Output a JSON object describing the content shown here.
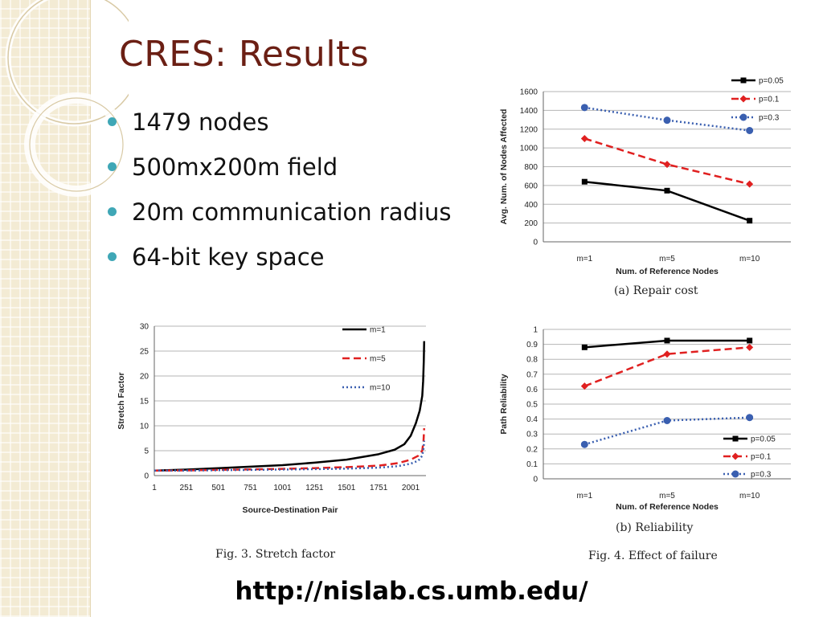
{
  "slide": {
    "title": "CRES: Results",
    "bullets": [
      "1479 nodes",
      "500mx200m field",
      "20m communication radius",
      "64-bit key space"
    ],
    "footer_url": "http://nislab.cs.umb.edu/",
    "colors": {
      "title": "#6b1f14",
      "bullet": "#3fa7b6",
      "sidebar": "#f3ebd4"
    }
  },
  "captions": {
    "repair": "(a)  Repair cost",
    "reliability": "(b)  Reliability",
    "fig3": "Fig. 3.    Stretch factor",
    "fig4": "Fig. 4.    Effect of failure"
  },
  "chart_data": [
    {
      "id": "repair",
      "type": "line",
      "categories": [
        "m=1",
        "m=5",
        "m=10"
      ],
      "xlabel": "Num. of Reference Nodes",
      "ylabel": "Avg. Num. of Nodes Affected",
      "ylim": [
        0,
        1600
      ],
      "yticks": [
        0,
        200,
        400,
        600,
        800,
        1000,
        1200,
        1400,
        1600
      ],
      "grid": true,
      "legend": "top-right",
      "series": [
        {
          "name": "p=0.05",
          "values": [
            640,
            545,
            225
          ],
          "color": "#000000",
          "style": "solid",
          "marker": "square"
        },
        {
          "name": "p=0.1",
          "values": [
            1100,
            825,
            615
          ],
          "color": "#e02020",
          "style": "dashed",
          "marker": "diamond"
        },
        {
          "name": "p=0.3",
          "values": [
            1430,
            1295,
            1185
          ],
          "color": "#3a5fb0",
          "style": "dotted",
          "marker": "circle"
        }
      ]
    },
    {
      "id": "stretch",
      "type": "line",
      "xlabel": "Source-Destination Pair",
      "ylabel": "Stretch Factor",
      "ylim": [
        0,
        30
      ],
      "xlim": [
        1,
        2100
      ],
      "xticks": [
        "1",
        "251",
        "501",
        "751",
        "1001",
        "1251",
        "1501",
        "1751",
        "2001"
      ],
      "yticks": [
        0,
        5,
        10,
        15,
        20,
        25,
        30
      ],
      "grid": true,
      "legend": "top-right",
      "series": [
        {
          "name": "m=1",
          "color": "#000000",
          "style": "solid",
          "x": [
            1,
            251,
            501,
            751,
            1001,
            1251,
            1501,
            1751,
            1876,
            1951,
            2001,
            2041,
            2071,
            2091,
            2098,
            2103,
            2106
          ],
          "values": [
            1.0,
            1.2,
            1.5,
            1.8,
            2.1,
            2.6,
            3.2,
            4.3,
            5.2,
            6.3,
            8.0,
            10.5,
            13.0,
            16.0,
            19.0,
            23.0,
            27.0
          ]
        },
        {
          "name": "m=5",
          "color": "#e02020",
          "style": "dashed",
          "x": [
            1,
            251,
            501,
            751,
            1001,
            1251,
            1501,
            1751,
            1901,
            2001,
            2061,
            2091,
            2101,
            2106
          ],
          "values": [
            1.0,
            1.05,
            1.15,
            1.25,
            1.35,
            1.5,
            1.7,
            2.0,
            2.5,
            3.2,
            4.0,
            5.0,
            7.0,
            9.5
          ]
        },
        {
          "name": "m=10",
          "color": "#3a5fb0",
          "style": "dotted",
          "x": [
            1,
            251,
            501,
            751,
            1001,
            1251,
            1501,
            1751,
            1901,
            2001,
            2061,
            2091,
            2101,
            2106
          ],
          "values": [
            1.0,
            1.02,
            1.08,
            1.15,
            1.22,
            1.3,
            1.4,
            1.6,
            1.9,
            2.4,
            3.0,
            4.0,
            5.5,
            7.0
          ]
        }
      ]
    },
    {
      "id": "reliability",
      "type": "line",
      "categories": [
        "m=1",
        "m=5",
        "m=10"
      ],
      "xlabel": "Num. of Reference Nodes",
      "ylabel": "Path Reliability",
      "ylim": [
        0,
        1
      ],
      "yticks": [
        "0",
        "0.1",
        "0.2",
        "0.3",
        "0.4",
        "0.5",
        "0.6",
        "0.7",
        "0.8",
        "0.9",
        "1"
      ],
      "grid": true,
      "legend": "bottom-right",
      "series": [
        {
          "name": "p=0.05",
          "values": [
            0.88,
            0.925,
            0.925
          ],
          "color": "#000000",
          "style": "solid",
          "marker": "square"
        },
        {
          "name": "p=0.1",
          "values": [
            0.62,
            0.835,
            0.88
          ],
          "color": "#e02020",
          "style": "dashed",
          "marker": "diamond"
        },
        {
          "name": "p=0.3",
          "values": [
            0.23,
            0.39,
            0.41
          ],
          "color": "#3a5fb0",
          "style": "dotted",
          "marker": "circle"
        }
      ]
    }
  ]
}
